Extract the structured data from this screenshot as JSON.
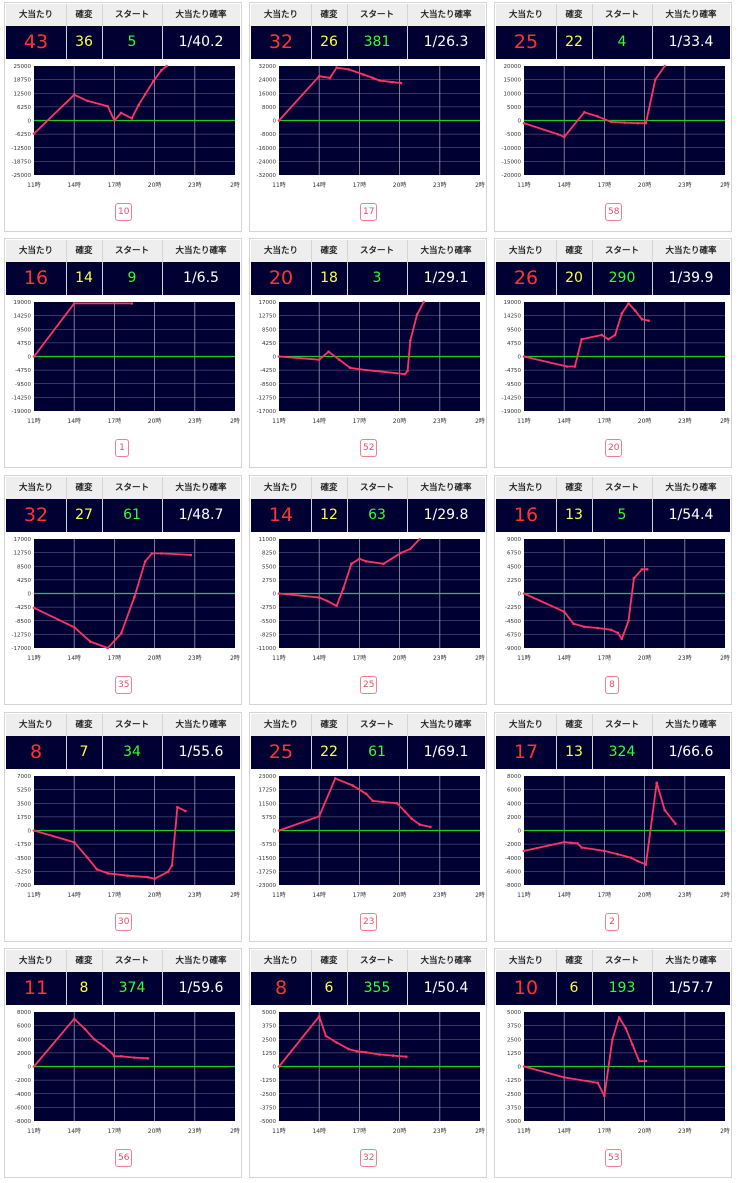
{
  "headers": {
    "hits": "大当たり",
    "kakuhen": "確変",
    "start": "スタート",
    "rate": "大当たり確率"
  },
  "x_ticks": [
    "11時",
    "14時",
    "17時",
    "20時",
    "23時",
    "2時"
  ],
  "colors": {
    "panel": "#000033",
    "grid": "#9a9ab4",
    "zero": "#22cc22",
    "line": "#ff3366",
    "label": "#333333"
  },
  "cards": [
    {
      "hits": "43",
      "kakuhen": "36",
      "start": "5",
      "rate": "1/40.2",
      "machine": "10"
    },
    {
      "hits": "32",
      "kakuhen": "26",
      "start": "381",
      "rate": "1/26.3",
      "machine": "17"
    },
    {
      "hits": "25",
      "kakuhen": "22",
      "start": "4",
      "rate": "1/33.4",
      "machine": "58"
    },
    {
      "hits": "16",
      "kakuhen": "14",
      "start": "9",
      "rate": "1/6.5",
      "machine": "1"
    },
    {
      "hits": "20",
      "kakuhen": "18",
      "start": "3",
      "rate": "1/29.1",
      "machine": "52"
    },
    {
      "hits": "26",
      "kakuhen": "20",
      "start": "290",
      "rate": "1/39.9",
      "machine": "20"
    },
    {
      "hits": "32",
      "kakuhen": "27",
      "start": "61",
      "rate": "1/48.7",
      "machine": "35"
    },
    {
      "hits": "14",
      "kakuhen": "12",
      "start": "63",
      "rate": "1/29.8",
      "machine": "25"
    },
    {
      "hits": "16",
      "kakuhen": "13",
      "start": "5",
      "rate": "1/54.4",
      "machine": "8"
    },
    {
      "hits": "8",
      "kakuhen": "7",
      "start": "34",
      "rate": "1/55.6",
      "machine": "30"
    },
    {
      "hits": "25",
      "kakuhen": "22",
      "start": "61",
      "rate": "1/69.1",
      "machine": "23"
    },
    {
      "hits": "17",
      "kakuhen": "13",
      "start": "324",
      "rate": "1/66.6",
      "machine": "2"
    },
    {
      "hits": "11",
      "kakuhen": "8",
      "start": "374",
      "rate": "1/59.6",
      "machine": "56"
    },
    {
      "hits": "8",
      "kakuhen": "6",
      "start": "355",
      "rate": "1/50.4",
      "machine": "32"
    },
    {
      "hits": "10",
      "kakuhen": "6",
      "start": "193",
      "rate": "1/57.7",
      "machine": "53"
    }
  ],
  "chart_data": [
    {
      "type": "line",
      "xlabel": "",
      "ylabel": "",
      "x_ticks": [
        "11時",
        "14時",
        "17時",
        "20時",
        "23時",
        "2時"
      ],
      "y_ticks": [
        "25000",
        "18750",
        "12500",
        "6250",
        "0",
        "-6250",
        "-12500",
        "-18750",
        "-25000"
      ],
      "ylim": [
        -25000,
        25000
      ],
      "series": [
        {
          "x": [
            11,
            14,
            15,
            16.5,
            17,
            17.5,
            18.3,
            18.8,
            19.3,
            19.9,
            20.5,
            20.9
          ],
          "y": [
            -6000,
            11800,
            9000,
            6500,
            0,
            3500,
            1000,
            7000,
            12000,
            18000,
            23000,
            25000
          ]
        }
      ]
    },
    {
      "type": "line",
      "xlabel": "",
      "ylabel": "",
      "x_ticks": [
        "11時",
        "14時",
        "17時",
        "20時",
        "23時",
        "2時"
      ],
      "y_ticks": [
        "32000",
        "24000",
        "16000",
        "8000",
        "0",
        "-8000",
        "-16000",
        "-24000",
        "-32000"
      ],
      "ylim": [
        -32000,
        32000
      ],
      "series": [
        {
          "x": [
            11,
            14,
            14.8,
            15.3,
            16.2,
            17.3,
            18,
            18.5,
            19.5,
            20.1
          ],
          "y": [
            0,
            26000,
            25000,
            31000,
            30000,
            27000,
            25000,
            23500,
            22500,
            22000
          ]
        }
      ]
    },
    {
      "type": "line",
      "xlabel": "",
      "ylabel": "",
      "x_ticks": [
        "11時",
        "14時",
        "17時",
        "20時",
        "23時",
        "2時"
      ],
      "y_ticks": [
        "20000",
        "15000",
        "10000",
        "5000",
        "0",
        "-5000",
        "-10000",
        "-15000",
        "-20000"
      ],
      "ylim": [
        -20000,
        20000
      ],
      "series": [
        {
          "x": [
            11,
            13.5,
            14,
            15.5,
            16.5,
            17.5,
            18.5,
            19.5,
            20.1,
            20.8,
            21.5
          ],
          "y": [
            -1000,
            -5000,
            -6000,
            3000,
            1500,
            -500,
            -800,
            -1000,
            -1000,
            15000,
            20000
          ]
        }
      ]
    },
    {
      "type": "line",
      "xlabel": "",
      "ylabel": "",
      "x_ticks": [
        "11時",
        "14時",
        "17時",
        "20時",
        "23時",
        "2時"
      ],
      "y_ticks": [
        "19000",
        "14250",
        "9500",
        "4750",
        "0",
        "-4750",
        "-9500",
        "-14250",
        "-19000"
      ],
      "ylim": [
        -19000,
        19000
      ],
      "series": [
        {
          "x": [
            11,
            14,
            18.3
          ],
          "y": [
            0,
            18500,
            18500
          ]
        }
      ]
    },
    {
      "type": "line",
      "xlabel": "",
      "ylabel": "",
      "x_ticks": [
        "11時",
        "14時",
        "17時",
        "20時",
        "23時",
        "2時"
      ],
      "y_ticks": [
        "17000",
        "12750",
        "8500",
        "4250",
        "0",
        "-4250",
        "-8500",
        "-12750",
        "-17000"
      ],
      "ylim": [
        -17000,
        17000
      ],
      "series": [
        {
          "x": [
            11,
            14,
            14.7,
            15.5,
            16.3,
            17,
            20.4,
            20.6,
            20.8,
            21.3,
            21.8
          ],
          "y": [
            0,
            -1000,
            1500,
            -1000,
            -3500,
            -4000,
            -5500,
            -4500,
            5000,
            13000,
            17000
          ]
        }
      ]
    },
    {
      "type": "line",
      "xlabel": "",
      "ylabel": "",
      "x_ticks": [
        "11時",
        "14時",
        "17時",
        "20時",
        "23時",
        "2時"
      ],
      "y_ticks": [
        "19000",
        "14250",
        "9500",
        "4750",
        "0",
        "-4750",
        "-9500",
        "-14250",
        "-19000"
      ],
      "ylim": [
        -19000,
        19000
      ],
      "series": [
        {
          "x": [
            11,
            14.2,
            14.8,
            15.3,
            16.8,
            17.3,
            17.8,
            18.3,
            18.8,
            19.3,
            19.8,
            20.3
          ],
          "y": [
            0,
            -3500,
            -3500,
            6000,
            7500,
            6000,
            7500,
            15000,
            18500,
            16000,
            13000,
            12500
          ]
        }
      ]
    },
    {
      "type": "line",
      "xlabel": "",
      "ylabel": "",
      "x_ticks": [
        "11時",
        "14時",
        "17時",
        "20時",
        "23時",
        "2時"
      ],
      "y_ticks": [
        "17000",
        "12750",
        "8500",
        "4250",
        "0",
        "-4250",
        "-8500",
        "-12750",
        "-17000"
      ],
      "ylim": [
        -17000,
        17000
      ],
      "series": [
        {
          "x": [
            11,
            14,
            15.2,
            16.5,
            17.5,
            18.5,
            19.3,
            19.8,
            20.5,
            22.7
          ],
          "y": [
            -4500,
            -10500,
            -15000,
            -17000,
            -12500,
            -1000,
            10000,
            12500,
            12500,
            12000
          ]
        }
      ]
    },
    {
      "type": "line",
      "xlabel": "",
      "ylabel": "",
      "x_ticks": [
        "11時",
        "14時",
        "17時",
        "20時",
        "23時",
        "2時"
      ],
      "y_ticks": [
        "11000",
        "8250",
        "5500",
        "2750",
        "0",
        "-2750",
        "-5500",
        "-8250",
        "-11000"
      ],
      "ylim": [
        -11000,
        11000
      ],
      "series": [
        {
          "x": [
            11,
            14,
            14.6,
            15.3,
            15.8,
            16.4,
            17,
            17.5,
            18.8,
            20.1,
            20.8,
            21.5
          ],
          "y": [
            0,
            -800,
            -1500,
            -2500,
            1000,
            6000,
            7000,
            6500,
            6000,
            8200,
            9000,
            11000
          ]
        }
      ]
    },
    {
      "type": "line",
      "xlabel": "",
      "ylabel": "",
      "x_ticks": [
        "11時",
        "14時",
        "17時",
        "20時",
        "23時",
        "2時"
      ],
      "y_ticks": [
        "9000",
        "6750",
        "4500",
        "2250",
        "0",
        "-2250",
        "-4500",
        "-6750",
        "-9000"
      ],
      "ylim": [
        -9000,
        9000
      ],
      "series": [
        {
          "x": [
            11,
            14,
            14.7,
            15.5,
            16.5,
            17.5,
            18,
            18.3,
            18.8,
            19.2,
            19.8,
            20.2
          ],
          "y": [
            0,
            -3000,
            -5000,
            -5500,
            -5700,
            -6000,
            -6500,
            -7500,
            -4500,
            2500,
            4000,
            4000
          ]
        }
      ]
    },
    {
      "type": "line",
      "xlabel": "",
      "ylabel": "",
      "x_ticks": [
        "11時",
        "14時",
        "17時",
        "20時",
        "23時",
        "2時"
      ],
      "y_ticks": [
        "7000",
        "5250",
        "3500",
        "1750",
        "0",
        "-1750",
        "-3500",
        "-5250",
        "-7000"
      ],
      "ylim": [
        -7000,
        7000
      ],
      "series": [
        {
          "x": [
            11,
            14,
            15,
            15.7,
            16.5,
            18,
            19.5,
            20,
            21,
            21.3,
            21.7,
            22.3
          ],
          "y": [
            0,
            -1500,
            -3500,
            -5000,
            -5500,
            -5800,
            -6000,
            -6200,
            -5300,
            -4500,
            3000,
            2500
          ]
        }
      ]
    },
    {
      "type": "line",
      "xlabel": "",
      "ylabel": "",
      "x_ticks": [
        "11時",
        "14時",
        "17時",
        "20時",
        "23時",
        "2時"
      ],
      "y_ticks": [
        "23000",
        "17250",
        "11500",
        "5750",
        "0",
        "-5750",
        "-11500",
        "-17250",
        "-23000"
      ],
      "ylim": [
        -23000,
        23000
      ],
      "series": [
        {
          "x": [
            11,
            14,
            15.2,
            16.5,
            17.5,
            18,
            18.8,
            19.8,
            20.4,
            20.9,
            21.5,
            22.3
          ],
          "y": [
            0,
            6000,
            22000,
            19000,
            15500,
            12500,
            12000,
            11500,
            8000,
            5000,
            2500,
            1500
          ]
        }
      ]
    },
    {
      "type": "line",
      "xlabel": "",
      "ylabel": "",
      "x_ticks": [
        "11時",
        "14時",
        "17時",
        "20時",
        "23時",
        "2時"
      ],
      "y_ticks": [
        "8000",
        "6000",
        "4000",
        "2000",
        "0",
        "-2000",
        "-4000",
        "-6000",
        "-8000"
      ],
      "ylim": [
        -8000,
        8000
      ],
      "series": [
        {
          "x": [
            11,
            14,
            14.5,
            15,
            15.3,
            17,
            18,
            19,
            19.5,
            20.1,
            20.9,
            21.5,
            22.3
          ],
          "y": [
            -3000,
            -1700,
            -1800,
            -1900,
            -2500,
            -3000,
            -3500,
            -4000,
            -4500,
            -5000,
            7000,
            3000,
            1000
          ]
        }
      ]
    },
    {
      "type": "line",
      "xlabel": "",
      "ylabel": "",
      "x_ticks": [
        "11時",
        "14時",
        "17時",
        "20時",
        "23時",
        "2時"
      ],
      "y_ticks": [
        "8000",
        "6000",
        "4000",
        "2000",
        "0",
        "-2000",
        "-4000",
        "-6000",
        "-8000"
      ],
      "ylim": [
        -8000,
        8000
      ],
      "series": [
        {
          "x": [
            11,
            14,
            14.8,
            15.5,
            16.2,
            16.8,
            17,
            17.5,
            18.5,
            19.5
          ],
          "y": [
            0,
            7000,
            5500,
            4000,
            3000,
            2000,
            1500,
            1500,
            1300,
            1200
          ]
        }
      ]
    },
    {
      "type": "line",
      "xlabel": "",
      "ylabel": "",
      "x_ticks": [
        "11時",
        "14時",
        "17時",
        "20時",
        "23時",
        "2時"
      ],
      "y_ticks": [
        "5000",
        "3750",
        "2500",
        "1250",
        "0",
        "-1250",
        "-2500",
        "-3750",
        "-5000"
      ],
      "ylim": [
        -5000,
        5000
      ],
      "series": [
        {
          "x": [
            11,
            14,
            14.5,
            15.3,
            16.2,
            16.8,
            17.5,
            18.5,
            19.5,
            20.5
          ],
          "y": [
            0,
            4600,
            2800,
            2200,
            1600,
            1400,
            1300,
            1100,
            1000,
            900
          ]
        }
      ]
    },
    {
      "type": "line",
      "xlabel": "",
      "ylabel": "",
      "x_ticks": [
        "11時",
        "14時",
        "17時",
        "20時",
        "23時",
        "2時"
      ],
      "y_ticks": [
        "5000",
        "3750",
        "2500",
        "1250",
        "0",
        "-1250",
        "-2500",
        "-3750",
        "-5000"
      ],
      "ylim": [
        -5000,
        5000
      ],
      "series": [
        {
          "x": [
            11,
            14,
            16.5,
            17,
            17.6,
            18.1,
            18.6,
            19.1,
            19.6,
            20.1
          ],
          "y": [
            0,
            -1000,
            -1500,
            -2700,
            2500,
            4500,
            3500,
            2000,
            500,
            500
          ]
        }
      ]
    }
  ]
}
